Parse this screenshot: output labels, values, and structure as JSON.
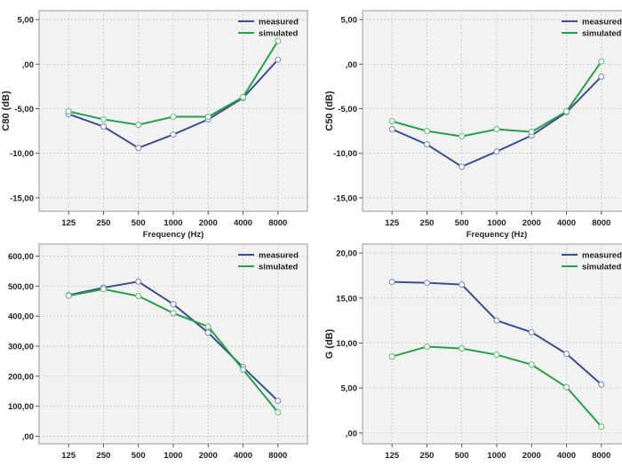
{
  "colors": {
    "measured": "#3a4f92",
    "simulated": "#27a04a",
    "plot_bg": "#f2f2f2",
    "grid": "#c8c8c8",
    "marker_fill": "#ffffff"
  },
  "chart_data": [
    {
      "type": "line",
      "title": "",
      "xlabel": "Frequency (Hz)",
      "ylabel": "C80 (dB)",
      "x": [
        "125",
        "250",
        "500",
        "1000",
        "2000",
        "4000",
        "8000"
      ],
      "x_scale": "log",
      "ylim": [
        -16.5,
        6
      ],
      "yticks": [
        -15,
        -10,
        -5,
        0,
        5
      ],
      "ytick_labels": [
        "-15,00",
        "-10,00",
        "-5,00",
        ",00",
        "5,00"
      ],
      "grid": true,
      "legend": "top-right",
      "series": [
        {
          "name": "measured",
          "values": [
            -5.6,
            -7.0,
            -9.4,
            -7.9,
            -6.2,
            -3.8,
            0.5
          ]
        },
        {
          "name": "simulated",
          "values": [
            -5.3,
            -6.2,
            -6.8,
            -5.9,
            -5.9,
            -3.7,
            2.6
          ]
        }
      ]
    },
    {
      "type": "line",
      "title": "",
      "xlabel": "Frequency (Hz)",
      "ylabel": "C50 (dB)",
      "x": [
        "125",
        "250",
        "500",
        "1000",
        "2000",
        "4000",
        "8000"
      ],
      "x_scale": "log",
      "ylim": [
        -16.5,
        6
      ],
      "yticks": [
        -15,
        -10,
        -5,
        0,
        5
      ],
      "ytick_labels": [
        "-15,00",
        "-10,00",
        "-5,00",
        ",00",
        "5,00"
      ],
      "grid": true,
      "legend": "top-right",
      "series": [
        {
          "name": "measured",
          "values": [
            -7.3,
            -9.0,
            -11.5,
            -9.8,
            -8.0,
            -5.4,
            -1.4
          ]
        },
        {
          "name": "simulated",
          "values": [
            -6.4,
            -7.5,
            -8.1,
            -7.3,
            -7.6,
            -5.3,
            0.3
          ]
        }
      ]
    },
    {
      "type": "line",
      "title": "",
      "xlabel": "",
      "ylabel": "",
      "x": [
        "125",
        "250",
        "500",
        "1000",
        "2000",
        "4000",
        "8000"
      ],
      "x_scale": "log",
      "ylim": [
        -25,
        640
      ],
      "yticks": [
        0,
        100,
        200,
        300,
        400,
        500,
        600
      ],
      "ytick_labels": [
        ",00",
        "100,00",
        "200,00",
        "300,00",
        "400,00",
        "500,00",
        "600,00"
      ],
      "grid": true,
      "legend": "top-right",
      "series": [
        {
          "name": "measured",
          "values": [
            470,
            495,
            515,
            440,
            345,
            230,
            118
          ]
        },
        {
          "name": "simulated",
          "values": [
            468,
            490,
            467,
            410,
            365,
            222,
            80
          ]
        }
      ]
    },
    {
      "type": "line",
      "title": "",
      "xlabel": "",
      "ylabel": "G (dB)",
      "x": [
        "125",
        "250",
        "500",
        "1000",
        "2000",
        "4000",
        "8000"
      ],
      "x_scale": "log",
      "ylim": [
        -1.2,
        21
      ],
      "yticks": [
        0,
        5,
        10,
        15,
        20
      ],
      "ytick_labels": [
        ",00",
        "5,00",
        "10,00",
        "15,00",
        "20,00"
      ],
      "grid": true,
      "legend": "top-right",
      "series": [
        {
          "name": "measured",
          "values": [
            16.8,
            16.7,
            16.5,
            12.5,
            11.2,
            8.8,
            5.4
          ]
        },
        {
          "name": "simulated",
          "values": [
            8.5,
            9.6,
            9.4,
            8.7,
            7.6,
            5.1,
            0.7
          ]
        }
      ]
    }
  ]
}
